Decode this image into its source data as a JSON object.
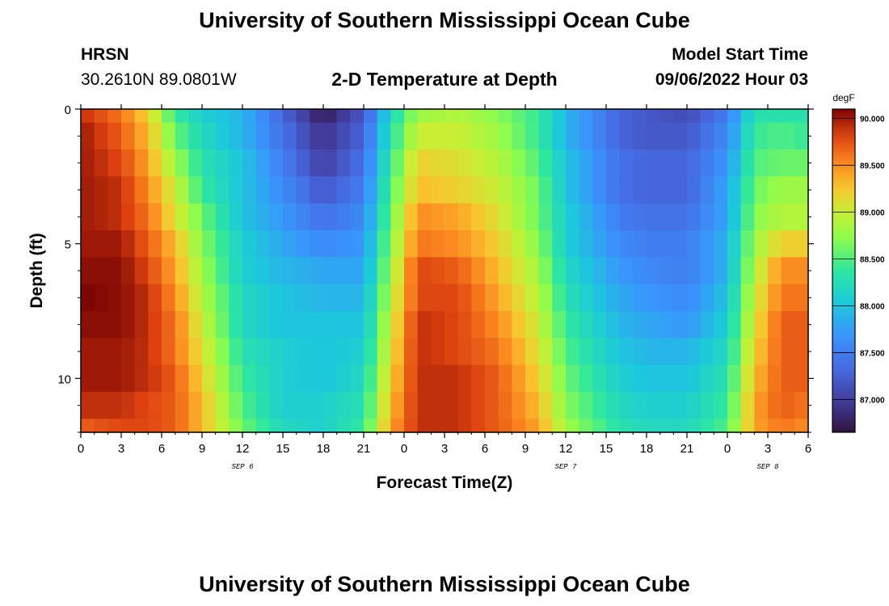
{
  "header": {
    "title": "University of Southern Mississippi Ocean Cube",
    "station": "HRSN",
    "coords": "30.2610N  89.0801W",
    "plot_title": "2-D Temperature at Depth",
    "model_start_label": "Model Start Time",
    "model_start_value": "09/06/2022 Hour 03"
  },
  "footer": {
    "title": "University of Southern Mississippi Ocean Cube"
  },
  "chart_data": {
    "type": "heatmap",
    "title": "2-D Temperature at Depth",
    "xlabel": "Forecast Time(Z)",
    "ylabel": "Depth (ft)",
    "x_range_hours": [
      0,
      54
    ],
    "y_range_ft": [
      0,
      12
    ],
    "x_tick_labels": [
      "0",
      "3",
      "6",
      "9",
      "12",
      "15",
      "18",
      "21",
      "0",
      "3",
      "6",
      "9",
      "12",
      "15",
      "18",
      "21",
      "0",
      "3",
      "6"
    ],
    "y_tick_labels": [
      "0",
      "5",
      "10"
    ],
    "date_labels": [
      {
        "label": "SEP 6",
        "hour": 12
      },
      {
        "label": "SEP 7",
        "hour": 36
      },
      {
        "label": "SEP 8",
        "hour": 51
      }
    ],
    "colorbar": {
      "unit": "degF",
      "min": 86.65,
      "max": 90.1,
      "tick_labels": [
        "90.000",
        "89.500",
        "89.000",
        "88.500",
        "88.000",
        "87.500",
        "87.000"
      ],
      "tick_values": [
        90.0,
        89.5,
        89.0,
        88.5,
        88.0,
        87.5,
        87.0
      ]
    },
    "depth_levels_ft": [
      0,
      1,
      2,
      3,
      4,
      5,
      6,
      7,
      8,
      9,
      10,
      11,
      12
    ],
    "profiles": {
      "description": "Temperature (degF) at forecast hours for each depth level (0..12 ft)",
      "hours": [
        0,
        3,
        5,
        7,
        9,
        12,
        15,
        18,
        21,
        23,
        25,
        28,
        31,
        34,
        36,
        40,
        42,
        45,
        48,
        50,
        52,
        54
      ],
      "rows": [
        [
          89.9,
          89.6,
          89.2,
          88.4,
          88.1,
          87.9,
          87.3,
          86.75,
          87.2,
          88.2,
          88.8,
          88.9,
          88.7,
          88.4,
          87.9,
          87.3,
          87.2,
          87.1,
          87.5,
          88.3,
          88.3,
          88.3
        ],
        [
          90.0,
          89.7,
          89.3,
          88.6,
          88.2,
          87.9,
          87.4,
          86.9,
          87.3,
          88.3,
          89.0,
          89.0,
          88.8,
          88.4,
          87.9,
          87.3,
          87.2,
          87.2,
          87.6,
          88.4,
          88.5,
          88.4
        ],
        [
          90.0,
          89.8,
          89.4,
          88.8,
          88.3,
          88.0,
          87.5,
          87.0,
          87.4,
          88.4,
          89.2,
          89.1,
          88.9,
          88.5,
          88.0,
          87.4,
          87.3,
          87.3,
          87.7,
          88.5,
          88.6,
          88.6
        ],
        [
          90.0,
          89.9,
          89.5,
          89.0,
          88.4,
          88.0,
          87.6,
          87.2,
          87.5,
          88.5,
          89.3,
          89.2,
          89.0,
          88.6,
          88.0,
          87.4,
          87.3,
          87.3,
          87.8,
          88.6,
          88.8,
          88.8
        ],
        [
          90.0,
          89.9,
          89.6,
          89.1,
          88.6,
          88.0,
          87.7,
          87.4,
          87.6,
          88.6,
          89.5,
          89.4,
          89.1,
          88.6,
          88.1,
          87.5,
          87.4,
          87.4,
          87.8,
          88.7,
          88.9,
          88.9
        ],
        [
          90.0,
          90.0,
          89.7,
          89.3,
          88.7,
          88.1,
          87.8,
          87.6,
          87.7,
          88.7,
          89.6,
          89.5,
          89.2,
          88.7,
          88.1,
          87.6,
          87.5,
          87.5,
          87.9,
          88.8,
          89.2,
          89.2
        ],
        [
          90.05,
          90.05,
          89.8,
          89.4,
          88.8,
          88.1,
          87.9,
          87.8,
          87.8,
          88.8,
          89.8,
          89.7,
          89.3,
          88.8,
          88.2,
          87.7,
          87.6,
          87.5,
          87.9,
          88.9,
          89.5,
          89.5
        ],
        [
          90.1,
          90.05,
          89.9,
          89.5,
          88.9,
          88.2,
          88.0,
          87.9,
          87.9,
          88.9,
          89.8,
          89.8,
          89.4,
          88.9,
          88.3,
          87.8,
          87.7,
          87.6,
          88.0,
          89.0,
          89.6,
          89.6
        ],
        [
          90.05,
          90.05,
          89.9,
          89.6,
          89.0,
          88.2,
          88.0,
          88.0,
          88.0,
          89.0,
          89.9,
          89.8,
          89.5,
          89.0,
          88.4,
          87.9,
          87.8,
          87.7,
          88.1,
          89.1,
          89.7,
          89.7
        ],
        [
          90.0,
          90.0,
          89.9,
          89.6,
          89.1,
          88.3,
          88.1,
          88.0,
          88.1,
          89.1,
          89.9,
          89.8,
          89.6,
          89.1,
          88.5,
          88.0,
          87.9,
          87.9,
          88.2,
          89.2,
          89.7,
          89.7
        ],
        [
          90.0,
          90.0,
          89.9,
          89.7,
          89.2,
          88.4,
          88.1,
          88.0,
          88.2,
          89.2,
          89.9,
          89.9,
          89.7,
          89.2,
          88.6,
          88.1,
          88.0,
          88.0,
          88.3,
          89.3,
          89.7,
          89.7
        ],
        [
          89.9,
          89.9,
          89.8,
          89.7,
          89.3,
          88.5,
          88.1,
          88.1,
          88.3,
          89.3,
          89.9,
          89.9,
          89.7,
          89.3,
          88.7,
          88.2,
          88.1,
          88.1,
          88.4,
          89.4,
          89.7,
          89.6
        ],
        [
          89.7,
          89.8,
          89.8,
          89.7,
          89.3,
          88.6,
          88.2,
          88.1,
          88.4,
          89.4,
          89.9,
          89.9,
          89.7,
          89.4,
          88.8,
          88.3,
          88.2,
          88.2,
          88.5,
          89.4,
          89.6,
          89.5
        ]
      ]
    }
  }
}
